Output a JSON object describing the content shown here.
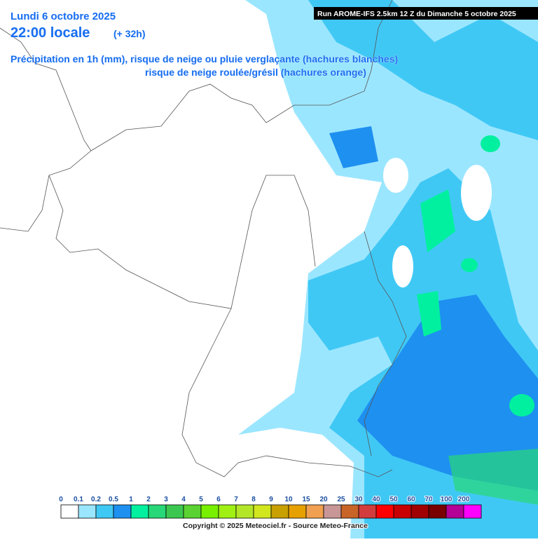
{
  "header": {
    "date": "Lundi 6 octobre 2025",
    "time": "22:00 locale",
    "lead": "(+ 32h)",
    "subtitle1": "Précipitation en 1h (mm), risque de neige ou pluie verglaçante (hachures blanches)",
    "subtitle2": "risque de neige roulée/grésil (hachures orange)"
  },
  "run_info": "Run AROME-IFS 2.5km 12 Z du Dimanche 5 octobre 2025",
  "legend": {
    "items": [
      {
        "value": 0,
        "color": "#ffffff"
      },
      {
        "value": 0.1,
        "color": "#9be6ff"
      },
      {
        "value": 0.2,
        "color": "#40c8f5"
      },
      {
        "value": 0.5,
        "color": "#1e90f0"
      },
      {
        "value": 1,
        "color": "#00f0a0"
      },
      {
        "value": 2,
        "color": "#28d878"
      },
      {
        "value": 3,
        "color": "#3cc850"
      },
      {
        "value": 4,
        "color": "#5ad232"
      },
      {
        "value": 5,
        "color": "#78f000"
      },
      {
        "value": 6,
        "color": "#a0f014"
      },
      {
        "value": 7,
        "color": "#b4e628"
      },
      {
        "value": 8,
        "color": "#d2e61e"
      },
      {
        "value": 9,
        "color": "#c8a000"
      },
      {
        "value": 10,
        "color": "#e6a000"
      },
      {
        "value": 15,
        "color": "#f0a050"
      },
      {
        "value": 20,
        "color": "#c89696"
      },
      {
        "value": 25,
        "color": "#c86428"
      },
      {
        "value": 30,
        "color": "#d23c3c"
      },
      {
        "value": 40,
        "color": "#ff0000"
      },
      {
        "value": 50,
        "color": "#c80000"
      },
      {
        "value": 60,
        "color": "#a00000"
      },
      {
        "value": 70,
        "color": "#780000"
      },
      {
        "value": 100,
        "color": "#b40096"
      },
      {
        "value": 200,
        "color": "#ff00ff"
      }
    ]
  },
  "copyright": "Copyright © 2025 Meteociel.fr - Source Meteo-France"
}
